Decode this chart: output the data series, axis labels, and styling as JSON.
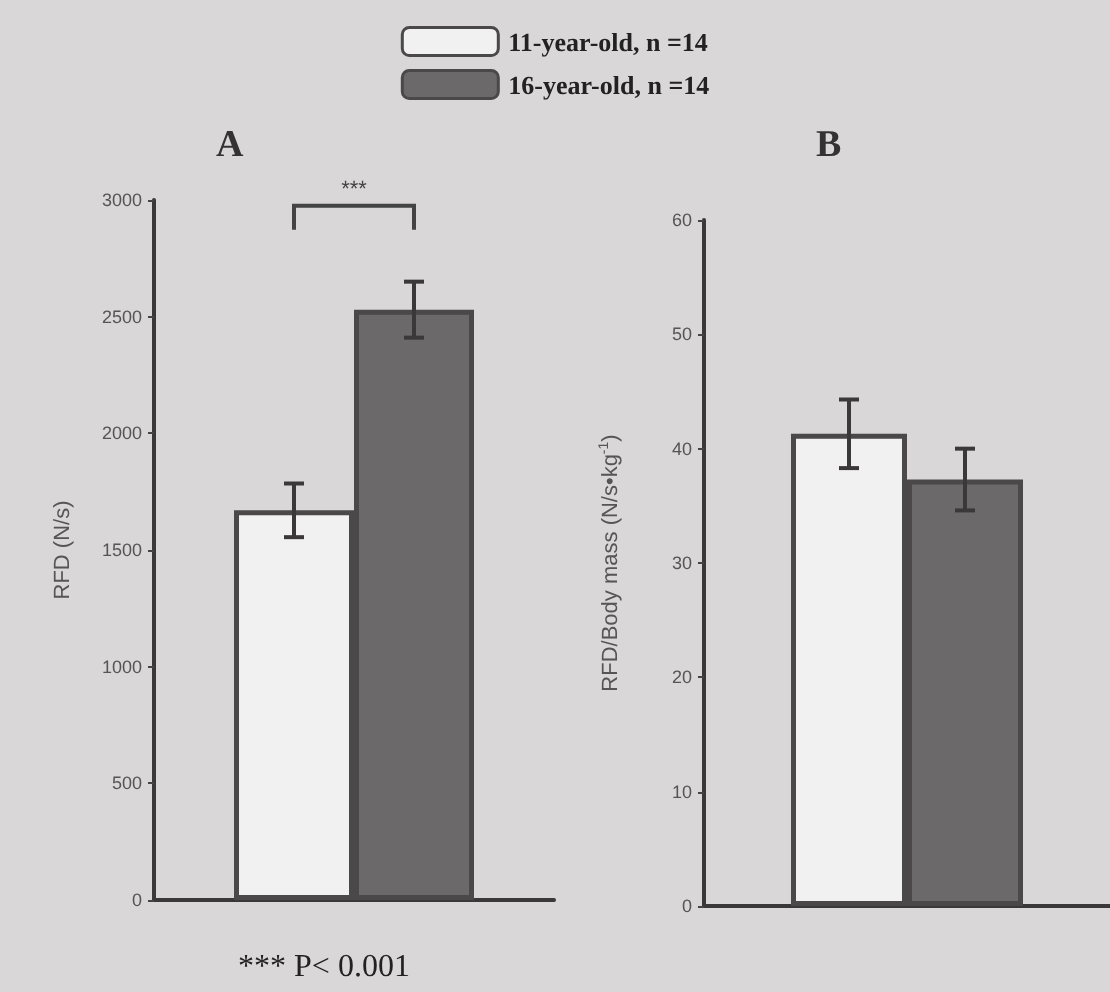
{
  "chart_data": [
    {
      "type": "bar",
      "title": "A",
      "ylabel": "RFD (N/s)",
      "categories": [
        null
      ],
      "series": [
        {
          "name": "11-year-old, n =14",
          "color": "#f2f1f1",
          "values": [
            1670
          ],
          "errors": [
            115
          ]
        },
        {
          "name": "16-year-old, n =14",
          "color": "#6b6969",
          "values": [
            2530
          ],
          "errors": [
            120
          ]
        }
      ],
      "ylim": [
        0,
        3000
      ],
      "yticks": [
        0,
        500,
        1000,
        1500,
        2000,
        2500,
        3000
      ],
      "grid": false,
      "legend": "top",
      "annotations": [
        "***",
        "*** P< 0.001"
      ]
    },
    {
      "type": "bar",
      "title": "B",
      "ylabel": "RFD/Body mass (N/s•kg$^{-1}$)",
      "categories": [
        null
      ],
      "series": [
        {
          "color": "#f2f1f1",
          "values": [
            41.3
          ],
          "errors": [
            3
          ]
        },
        {
          "color": "#6b6969",
          "values": [
            37.3
          ],
          "errors": [
            2.7
          ]
        }
      ],
      "ylim": [
        0,
        60
      ],
      "yticks": [
        0,
        10,
        20,
        30,
        40,
        50,
        60
      ],
      "grid": false,
      "legend": false
    }
  ]
}
